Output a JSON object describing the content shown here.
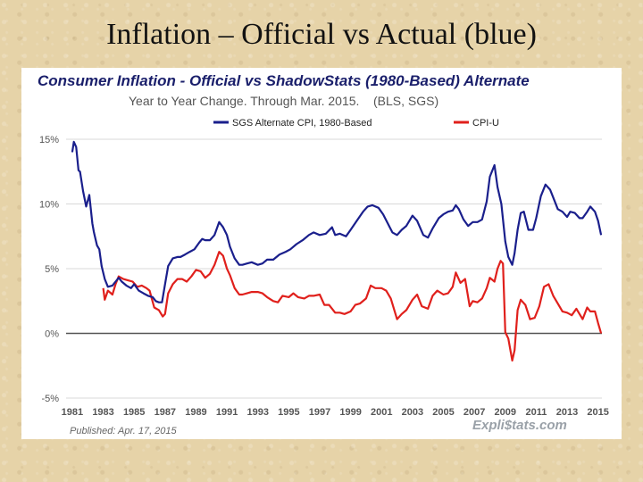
{
  "slide": {
    "title": "Inflation – Official vs Actual (blue)"
  },
  "chart_data": {
    "type": "line",
    "title": "Consumer Inflation - Official vs ShadowStats (1980-Based) Alternate",
    "subtitle": "Year to Year Change. Through Mar. 2015.    (BLS, SGS)",
    "xlabel": "",
    "ylabel": "",
    "xlim": [
      1980.6,
      2015.25
    ],
    "ylim": [
      -5,
      15
    ],
    "yticks": [
      15,
      10,
      5,
      0,
      -5
    ],
    "ytick_labels": [
      "15%",
      "10%",
      "5%",
      "0%",
      "-5%"
    ],
    "xticks": [
      1981,
      1983,
      1985,
      1987,
      1989,
      1991,
      1993,
      1995,
      1997,
      1999,
      2001,
      2003,
      2005,
      2007,
      2009,
      2011,
      2013,
      2015
    ],
    "xtick_labels": [
      "1981",
      "1983",
      "1985",
      "1987",
      "1989",
      "1991",
      "1993",
      "1995",
      "1997",
      "1999",
      "2001",
      "2003",
      "2005",
      "2007",
      "2009",
      "2011",
      "2013",
      "2015"
    ],
    "series": [
      {
        "name": "SGS Alternate CPI, 1980-Based",
        "color": "#1a1f8c",
        "x": [
          1981.0,
          1981.1,
          1981.25,
          1981.4,
          1981.5,
          1981.7,
          1981.9,
          1982.1,
          1982.3,
          1982.4,
          1982.6,
          1982.75,
          1982.9,
          1983.1,
          1983.3,
          1983.6,
          1983.8,
          1984.0,
          1984.2,
          1984.5,
          1984.8,
          1985.0,
          1985.3,
          1985.6,
          1985.9,
          1986.2,
          1986.4,
          1986.6,
          1986.8,
          1987.0,
          1987.2,
          1987.5,
          1987.8,
          1988.0,
          1988.3,
          1988.6,
          1988.9,
          1989.2,
          1989.4,
          1989.6,
          1989.9,
          1990.2,
          1990.5,
          1990.75,
          1991.0,
          1991.2,
          1991.5,
          1991.8,
          1992.0,
          1992.3,
          1992.6,
          1993.0,
          1993.3,
          1993.6,
          1994.0,
          1994.4,
          1994.8,
          1995.1,
          1995.5,
          1995.9,
          1996.3,
          1996.6,
          1997.0,
          1997.4,
          1997.8,
          1998.0,
          1998.3,
          1998.7,
          1999.0,
          1999.4,
          1999.8,
          2000.1,
          2000.4,
          2000.8,
          2001.1,
          2001.4,
          2001.7,
          2002.0,
          2002.3,
          2002.6,
          2003.0,
          2003.3,
          2003.7,
          2004.0,
          2004.3,
          2004.7,
          2005.0,
          2005.3,
          2005.6,
          2005.8,
          2006.0,
          2006.3,
          2006.6,
          2006.9,
          2007.2,
          2007.5,
          2007.8,
          2008.0,
          2008.3,
          2008.5,
          2008.75,
          2009.0,
          2009.2,
          2009.45,
          2009.6,
          2009.8,
          2010.0,
          2010.2,
          2010.5,
          2010.8,
          2011.0,
          2011.3,
          2011.6,
          2011.9,
          2012.1,
          2012.4,
          2012.7,
          2013.0,
          2013.2,
          2013.5,
          2013.8,
          2014.0,
          2014.3,
          2014.5,
          2014.8,
          2015.0,
          2015.2
        ],
        "values": [
          14.0,
          14.8,
          14.4,
          12.6,
          12.5,
          11.0,
          9.8,
          10.7,
          8.5,
          7.8,
          6.8,
          6.5,
          5.2,
          4.2,
          3.6,
          3.7,
          4.0,
          4.3,
          4.0,
          3.7,
          3.5,
          3.8,
          3.3,
          3.1,
          2.9,
          2.8,
          2.5,
          2.4,
          2.4,
          3.8,
          5.2,
          5.8,
          5.9,
          5.9,
          6.1,
          6.3,
          6.5,
          7.0,
          7.3,
          7.2,
          7.2,
          7.6,
          8.6,
          8.2,
          7.6,
          6.7,
          5.8,
          5.3,
          5.3,
          5.4,
          5.5,
          5.3,
          5.4,
          5.7,
          5.7,
          6.1,
          6.3,
          6.5,
          6.9,
          7.2,
          7.6,
          7.8,
          7.6,
          7.7,
          8.2,
          7.6,
          7.7,
          7.5,
          8.0,
          8.7,
          9.4,
          9.8,
          9.9,
          9.7,
          9.2,
          8.5,
          7.8,
          7.6,
          8.0,
          8.3,
          9.1,
          8.7,
          7.6,
          7.4,
          8.1,
          8.9,
          9.2,
          9.4,
          9.5,
          9.9,
          9.6,
          8.8,
          8.3,
          8.6,
          8.6,
          8.8,
          10.2,
          12.1,
          13.0,
          11.3,
          10.0,
          7.1,
          5.9,
          5.3,
          6.2,
          8.0,
          9.3,
          9.4,
          8.0,
          8.0,
          8.9,
          10.6,
          11.5,
          11.1,
          10.5,
          9.6,
          9.4,
          9.0,
          9.4,
          9.3,
          8.9,
          8.9,
          9.4,
          9.8,
          9.4,
          8.7,
          7.6
        ]
      },
      {
        "name": "CPI-U",
        "color": "#e0201c",
        "x": [
          1983.0,
          1983.1,
          1983.3,
          1983.6,
          1983.8,
          1984.0,
          1984.3,
          1984.6,
          1984.9,
          1985.2,
          1985.5,
          1985.8,
          1986.0,
          1986.3,
          1986.6,
          1986.85,
          1987.0,
          1987.2,
          1987.5,
          1987.8,
          1988.1,
          1988.4,
          1988.7,
          1989.0,
          1989.3,
          1989.6,
          1989.9,
          1990.2,
          1990.5,
          1990.75,
          1991.0,
          1991.2,
          1991.5,
          1991.8,
          1992.0,
          1992.3,
          1992.6,
          1993.0,
          1993.3,
          1993.6,
          1994.0,
          1994.3,
          1994.6,
          1995.0,
          1995.3,
          1995.6,
          1996.0,
          1996.3,
          1996.6,
          1997.0,
          1997.3,
          1997.6,
          1998.0,
          1998.3,
          1998.6,
          1999.0,
          1999.3,
          1999.6,
          2000.0,
          2000.3,
          2000.6,
          2001.0,
          2001.3,
          2001.6,
          2002.0,
          2002.3,
          2002.6,
          2003.0,
          2003.3,
          2003.6,
          2004.0,
          2004.3,
          2004.6,
          2005.0,
          2005.3,
          2005.6,
          2005.8,
          2006.1,
          2006.4,
          2006.7,
          2006.9,
          2007.2,
          2007.5,
          2007.8,
          2008.0,
          2008.3,
          2008.5,
          2008.7,
          2008.85,
          2009.0,
          2009.2,
          2009.45,
          2009.6,
          2009.8,
          2010.0,
          2010.3,
          2010.6,
          2010.9,
          2011.2,
          2011.5,
          2011.8,
          2012.1,
          2012.4,
          2012.7,
          2013.0,
          2013.3,
          2013.6,
          2014.0,
          2014.3,
          2014.5,
          2014.8,
          2015.0,
          2015.2
        ],
        "values": [
          3.5,
          2.6,
          3.3,
          3.0,
          3.8,
          4.4,
          4.2,
          4.1,
          4.0,
          3.6,
          3.7,
          3.5,
          3.3,
          2.0,
          1.8,
          1.3,
          1.5,
          3.1,
          3.8,
          4.2,
          4.2,
          4.0,
          4.4,
          4.9,
          4.8,
          4.3,
          4.6,
          5.3,
          6.3,
          6.0,
          5.0,
          4.5,
          3.5,
          3.0,
          3.0,
          3.1,
          3.2,
          3.2,
          3.1,
          2.8,
          2.5,
          2.4,
          2.9,
          2.8,
          3.1,
          2.8,
          2.7,
          2.9,
          2.9,
          3.0,
          2.2,
          2.2,
          1.6,
          1.6,
          1.5,
          1.7,
          2.2,
          2.3,
          2.7,
          3.7,
          3.5,
          3.5,
          3.3,
          2.7,
          1.1,
          1.5,
          1.8,
          2.6,
          3.0,
          2.1,
          1.9,
          2.9,
          3.3,
          3.0,
          3.1,
          3.6,
          4.7,
          3.9,
          4.2,
          2.1,
          2.5,
          2.4,
          2.7,
          3.5,
          4.3,
          4.0,
          5.0,
          5.6,
          5.4,
          0.1,
          -0.4,
          -2.1,
          -1.3,
          1.8,
          2.6,
          2.2,
          1.1,
          1.2,
          2.1,
          3.6,
          3.8,
          2.9,
          2.3,
          1.7,
          1.6,
          1.4,
          1.9,
          1.1,
          2.0,
          1.7,
          1.7,
          0.8,
          0.0
        ]
      }
    ],
    "reference_line": {
      "y": 0,
      "color": "#555555"
    },
    "published": "Published: Apr. 17, 2015",
    "brand": "Expli$tats.com"
  }
}
